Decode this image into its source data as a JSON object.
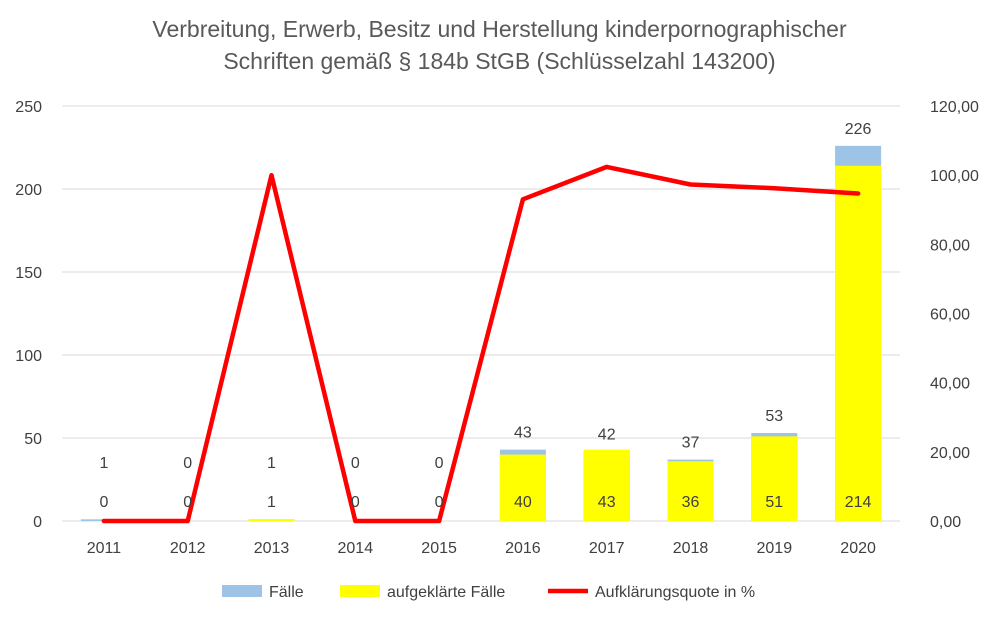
{
  "chart_data": {
    "type": "bar",
    "title": "Verbreitung, Erwerb, Besitz und Herstellung kinderpornographischer",
    "subtitle": "Schriften gemäß § 184b StGB (Schlüsselzahl 143200)",
    "categories": [
      "2011",
      "2012",
      "2013",
      "2014",
      "2015",
      "2016",
      "2017",
      "2018",
      "2019",
      "2020"
    ],
    "series": [
      {
        "name": "Fälle",
        "type": "bar",
        "axis": "left",
        "color": "#9DC3E6",
        "values": [
          1,
          0,
          1,
          0,
          0,
          43,
          42,
          37,
          53,
          226
        ]
      },
      {
        "name": "aufgeklärte Fälle",
        "type": "bar",
        "axis": "left",
        "color": "#FFFF00",
        "values": [
          0,
          0,
          1,
          0,
          0,
          40,
          43,
          36,
          51,
          214
        ]
      },
      {
        "name": "Aufklärungsquote in %",
        "type": "line",
        "axis": "right",
        "color": "#FF0000",
        "values": [
          0,
          0,
          100,
          0,
          0,
          93.02,
          102.38,
          97.3,
          96.23,
          94.69
        ]
      }
    ],
    "y_left": {
      "ylim": [
        0,
        250
      ],
      "ticks": [
        "0",
        "50",
        "100",
        "150",
        "200",
        "250"
      ]
    },
    "y_right": {
      "ylim": [
        0,
        120
      ],
      "ticks": [
        "0,00",
        "20,00",
        "40,00",
        "60,00",
        "80,00",
        "100,00",
        "120,00"
      ]
    },
    "grid": true,
    "legend": "bottom"
  }
}
